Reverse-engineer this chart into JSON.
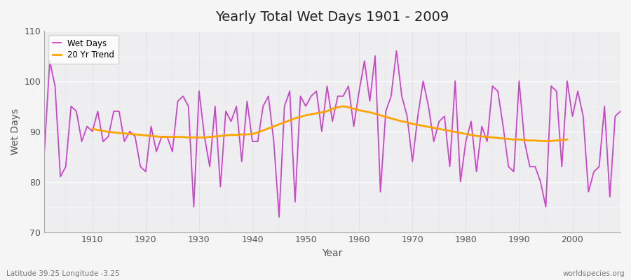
{
  "title": "Yearly Total Wet Days 1901 - 2009",
  "xlabel": "Year",
  "ylabel": "Wet Days",
  "subtitle_left": "Latitude 39.25 Longitude -3.25",
  "subtitle_right": "worldspecies.org",
  "ylim": [
    70,
    110
  ],
  "xlim": [
    1901,
    2009
  ],
  "yticks": [
    70,
    80,
    90,
    100,
    110
  ],
  "xticks": [
    1910,
    1920,
    1930,
    1940,
    1950,
    1960,
    1970,
    1980,
    1990,
    2000
  ],
  "wet_days_color": "#CC44CC",
  "trend_color": "#FFA500",
  "plot_bg_color": "#EEEEF0",
  "fig_bg_color": "#F5F5F5",
  "legend_labels": [
    "Wet Days",
    "20 Yr Trend"
  ],
  "wet_days": {
    "1901": 86,
    "1902": 104,
    "1903": 99,
    "1904": 81,
    "1905": 83,
    "1906": 95,
    "1907": 94,
    "1908": 88,
    "1909": 91,
    "1910": 90,
    "1911": 94,
    "1912": 88,
    "1913": 89,
    "1914": 94,
    "1915": 94,
    "1916": 88,
    "1917": 90,
    "1918": 89,
    "1919": 83,
    "1920": 82,
    "1921": 91,
    "1922": 86,
    "1923": 89,
    "1924": 89,
    "1925": 86,
    "1926": 96,
    "1927": 97,
    "1928": 95,
    "1929": 75,
    "1930": 98,
    "1931": 89,
    "1932": 83,
    "1933": 95,
    "1934": 79,
    "1935": 94,
    "1936": 92,
    "1937": 95,
    "1938": 84,
    "1939": 96,
    "1940": 88,
    "1941": 88,
    "1942": 95,
    "1943": 97,
    "1944": 88,
    "1945": 73,
    "1946": 95,
    "1947": 98,
    "1948": 76,
    "1949": 97,
    "1950": 95,
    "1951": 97,
    "1952": 98,
    "1953": 90,
    "1954": 99,
    "1955": 92,
    "1956": 97,
    "1957": 97,
    "1958": 99,
    "1959": 91,
    "1960": 98,
    "1961": 104,
    "1962": 96,
    "1963": 105,
    "1964": 78,
    "1965": 94,
    "1966": 97,
    "1967": 106,
    "1968": 97,
    "1969": 93,
    "1970": 84,
    "1971": 93,
    "1972": 100,
    "1973": 95,
    "1974": 88,
    "1975": 92,
    "1976": 93,
    "1977": 83,
    "1978": 100,
    "1979": 80,
    "1980": 88,
    "1981": 92,
    "1982": 82,
    "1983": 91,
    "1984": 88,
    "1985": 99,
    "1986": 98,
    "1987": 91,
    "1988": 83,
    "1989": 82,
    "1990": 100,
    "1991": 88,
    "1992": 83,
    "1993": 83,
    "1994": 80,
    "1995": 75,
    "1996": 99,
    "1997": 98,
    "1998": 83,
    "1999": 100,
    "2000": 93,
    "2001": 98,
    "2002": 93,
    "2003": 78,
    "2004": 82,
    "2005": 83,
    "2006": 95,
    "2007": 77,
    "2008": 93,
    "2009": 94
  },
  "trend_20yr": {
    "1910": 90.5,
    "1911": 90.3,
    "1912": 90.1,
    "1913": 89.9,
    "1914": 89.8,
    "1915": 89.7,
    "1916": 89.6,
    "1917": 89.5,
    "1918": 89.4,
    "1919": 89.3,
    "1920": 89.2,
    "1921": 89.1,
    "1922": 89.0,
    "1923": 88.9,
    "1924": 88.9,
    "1925": 88.9,
    "1926": 88.9,
    "1927": 88.9,
    "1928": 88.8,
    "1929": 88.8,
    "1930": 88.8,
    "1931": 88.8,
    "1932": 88.9,
    "1933": 89.0,
    "1934": 89.1,
    "1935": 89.2,
    "1936": 89.3,
    "1937": 89.3,
    "1938": 89.4,
    "1939": 89.4,
    "1940": 89.5,
    "1941": 89.8,
    "1942": 90.2,
    "1943": 90.6,
    "1944": 91.0,
    "1945": 91.4,
    "1946": 91.8,
    "1947": 92.2,
    "1948": 92.6,
    "1949": 92.9,
    "1950": 93.2,
    "1951": 93.4,
    "1952": 93.6,
    "1953": 93.8,
    "1954": 94.0,
    "1955": 94.5,
    "1956": 94.8,
    "1957": 95.0,
    "1958": 94.8,
    "1959": 94.5,
    "1960": 94.2,
    "1961": 94.0,
    "1962": 93.8,
    "1963": 93.5,
    "1964": 93.2,
    "1965": 92.9,
    "1966": 92.6,
    "1967": 92.3,
    "1968": 92.0,
    "1969": 91.8,
    "1970": 91.5,
    "1971": 91.3,
    "1972": 91.1,
    "1973": 90.9,
    "1974": 90.7,
    "1975": 90.5,
    "1976": 90.3,
    "1977": 90.1,
    "1978": 89.9,
    "1979": 89.7,
    "1980": 89.5,
    "1981": 89.3,
    "1982": 89.1,
    "1983": 89.0,
    "1984": 88.9,
    "1985": 88.8,
    "1986": 88.7,
    "1987": 88.6,
    "1988": 88.5,
    "1989": 88.4,
    "1990": 88.4,
    "1991": 88.3,
    "1992": 88.2,
    "1993": 88.2,
    "1994": 88.1,
    "1995": 88.1,
    "1996": 88.1,
    "1997": 88.2,
    "1998": 88.3,
    "1999": 88.4
  }
}
